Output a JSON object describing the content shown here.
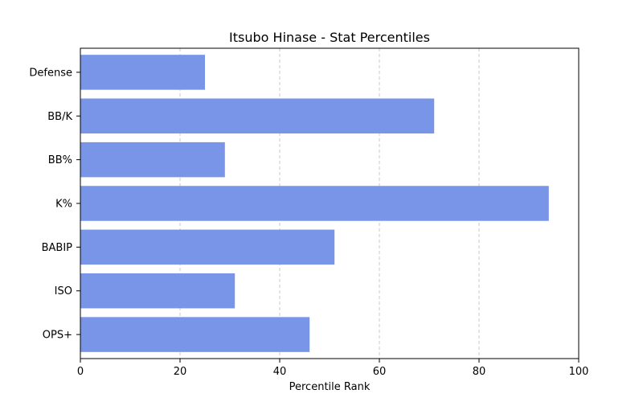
{
  "chart_data": {
    "type": "bar",
    "orientation": "horizontal",
    "title": "Itsubo Hinase - Stat Percentiles",
    "xlabel": "Percentile Rank",
    "ylabel": "",
    "xlim": [
      0,
      100
    ],
    "xticks": [
      0,
      20,
      40,
      60,
      80,
      100
    ],
    "categories": [
      "OPS+",
      "ISO",
      "BABIP",
      "K%",
      "BB%",
      "BB/K",
      "Defense"
    ],
    "values": [
      46,
      31,
      51,
      94,
      29,
      71,
      25
    ],
    "bar_color": "#7895e8",
    "grid": "x-axis, dashed",
    "legend": "none"
  }
}
